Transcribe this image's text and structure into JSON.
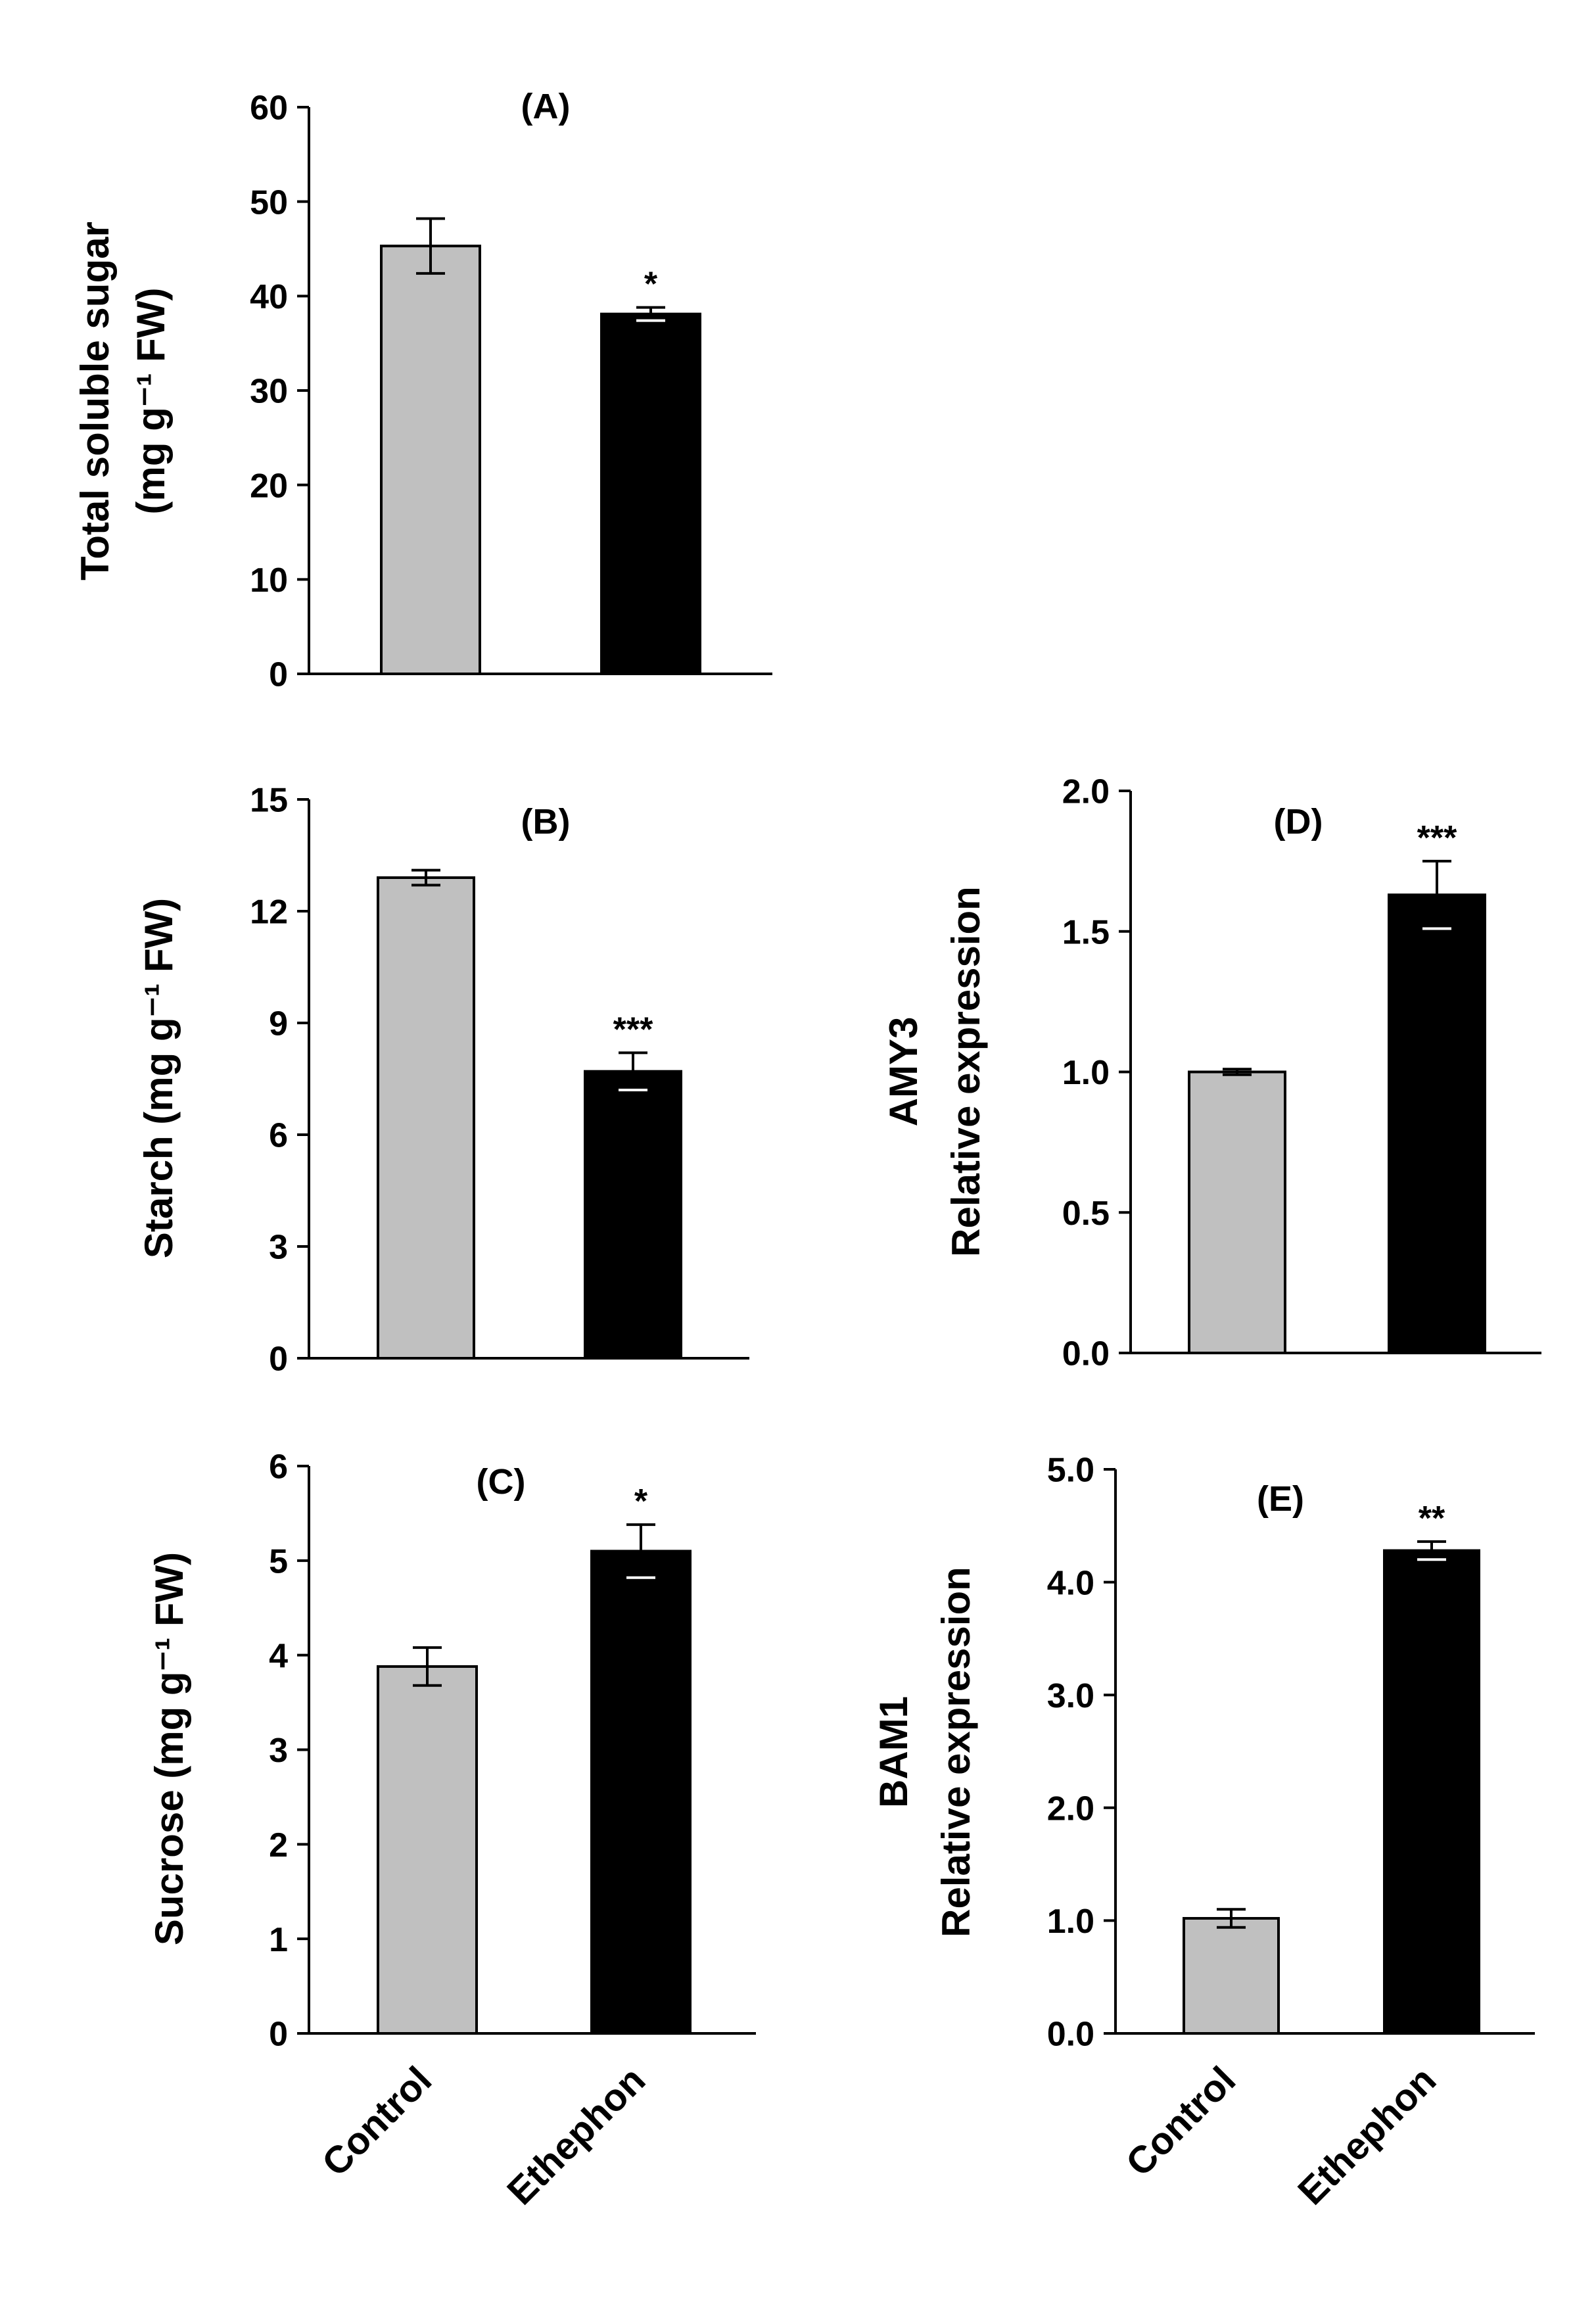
{
  "chart_data": [
    {
      "id": "A",
      "type": "bar",
      "title": "(A)",
      "categories": [
        "Control",
        "Ethephon"
      ],
      "values": [
        45.3,
        38.1
      ],
      "errors": [
        2.9,
        0.7
      ],
      "significance": [
        "",
        "*"
      ],
      "colors": [
        "#c0c0c0",
        "#000000"
      ],
      "ylabel": [
        "Total soluble sugar",
        "(mg g⁻¹ FW)"
      ],
      "ylim": [
        0,
        60
      ],
      "yticks": [
        0,
        10,
        20,
        30,
        40,
        50,
        60
      ],
      "ytick_labels": [
        "0",
        "10",
        "20",
        "30",
        "40",
        "50",
        "60"
      ],
      "show_xticklabels": false
    },
    {
      "id": "B",
      "type": "bar",
      "title": "(B)",
      "categories": [
        "Control",
        "Ethephon"
      ],
      "values": [
        12.9,
        7.7
      ],
      "errors": [
        0.2,
        0.5
      ],
      "significance": [
        "",
        "***"
      ],
      "colors": [
        "#c0c0c0",
        "#000000"
      ],
      "ylabel": [
        "Starch (mg g⁻¹ FW)"
      ],
      "ylim": [
        0,
        15
      ],
      "yticks": [
        0,
        3,
        6,
        9,
        12,
        15
      ],
      "ytick_labels": [
        "0",
        "3",
        "6",
        "9",
        "12",
        "15"
      ],
      "show_xticklabels": false
    },
    {
      "id": "C",
      "type": "bar",
      "title": "(C)",
      "categories": [
        "Control",
        "Ethephon"
      ],
      "values": [
        3.88,
        5.1
      ],
      "errors": [
        0.2,
        0.28
      ],
      "significance": [
        "",
        "*"
      ],
      "colors": [
        "#c0c0c0",
        "#000000"
      ],
      "ylabel": [
        "Sucrose (mg g⁻¹ FW)"
      ],
      "ylim": [
        0,
        6
      ],
      "yticks": [
        0,
        1,
        2,
        3,
        4,
        5,
        6
      ],
      "ytick_labels": [
        "0",
        "1",
        "2",
        "3",
        "4",
        "5",
        "6"
      ],
      "show_xticklabels": true
    },
    {
      "id": "D",
      "type": "bar",
      "title": "(D)",
      "categories": [
        "Control",
        "Ethephon"
      ],
      "values": [
        1.0,
        1.63
      ],
      "errors": [
        0.01,
        0.12
      ],
      "significance": [
        "",
        "***"
      ],
      "colors": [
        "#c0c0c0",
        "#000000"
      ],
      "ylabel": [
        "AMY3",
        "Relative expression"
      ],
      "ylim": [
        0,
        2
      ],
      "yticks": [
        0,
        0.5,
        1.0,
        1.5,
        2.0
      ],
      "ytick_labels": [
        "0.0",
        "0.5",
        "1.0",
        "1.5",
        "2.0"
      ],
      "show_xticklabels": false
    },
    {
      "id": "E",
      "type": "bar",
      "title": "(E)",
      "categories": [
        "Control",
        "Ethephon"
      ],
      "values": [
        1.02,
        4.28
      ],
      "errors": [
        0.08,
        0.08
      ],
      "significance": [
        "",
        "**"
      ],
      "colors": [
        "#c0c0c0",
        "#000000"
      ],
      "ylabel": [
        "BAM1",
        "Relative expression"
      ],
      "ylim": [
        0,
        5
      ],
      "yticks": [
        0,
        1,
        2,
        3,
        4,
        5
      ],
      "ytick_labels": [
        "0.0",
        "1.0",
        "2.0",
        "3.0",
        "4.0",
        "5.0"
      ],
      "show_xticklabels": true
    }
  ]
}
